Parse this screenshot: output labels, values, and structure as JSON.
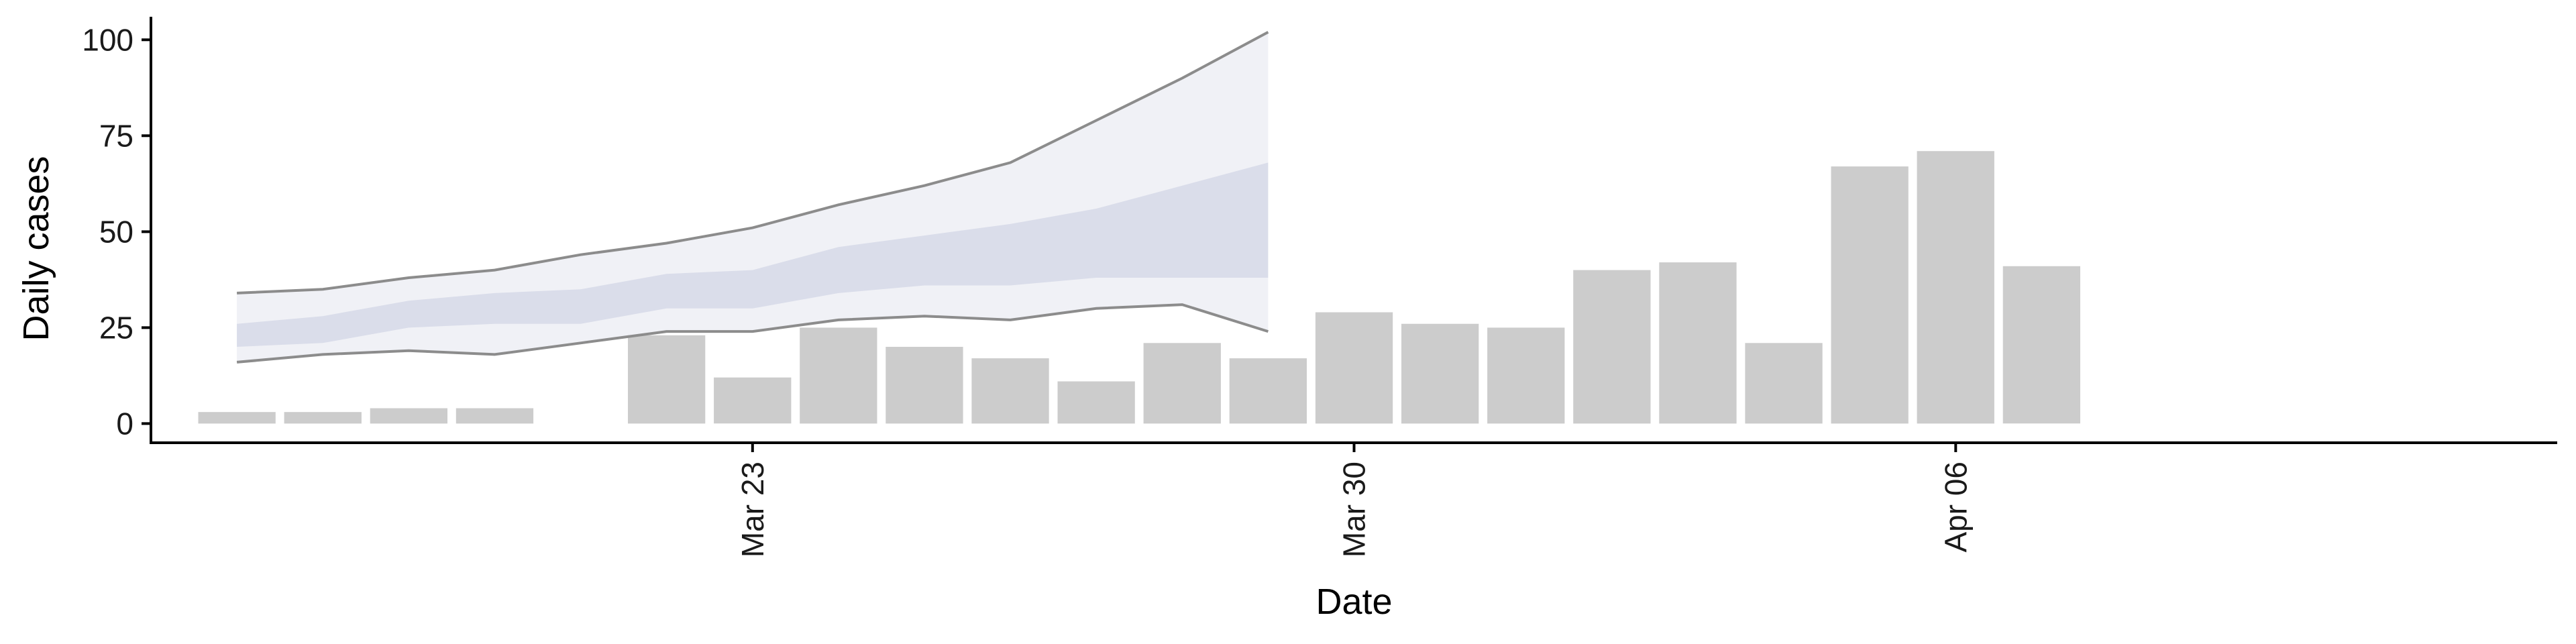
{
  "chart_data": {
    "type": "bar",
    "xlabel": "Date",
    "ylabel": "Daily cases",
    "ylim": [
      -5,
      106
    ],
    "y_ticks": [
      0,
      25,
      50,
      75,
      100
    ],
    "y_tick_labels": [
      "0",
      "25",
      "50",
      "75",
      "100"
    ],
    "x_ticks": [
      "2020-03-23",
      "2020-03-30",
      "2020-04-06"
    ],
    "x_tick_labels": [
      "Mar 23",
      "Mar 30",
      "Apr 06"
    ],
    "x_range": [
      "2020-03-16",
      "2020-04-13"
    ],
    "grid": false,
    "legend": "none",
    "bars": {
      "dates": [
        "2020-03-17",
        "2020-03-18",
        "2020-03-19",
        "2020-03-20",
        "2020-03-21",
        "2020-03-22",
        "2020-03-23",
        "2020-03-24",
        "2020-03-25",
        "2020-03-26",
        "2020-03-27",
        "2020-03-28",
        "2020-03-29",
        "2020-03-30",
        "2020-03-31",
        "2020-04-01",
        "2020-04-02",
        "2020-04-03",
        "2020-04-04",
        "2020-04-05",
        "2020-04-06",
        "2020-04-07",
        "2020-04-08",
        "2020-04-09"
      ],
      "values": [
        3,
        3,
        4,
        4,
        0,
        23,
        12,
        25,
        20,
        17,
        11,
        21,
        17,
        29,
        26,
        25,
        40,
        42,
        21,
        67,
        71,
        41,
        0,
        0
      ],
      "color": "#cccccc"
    },
    "estimate": {
      "dates": [
        "2020-03-17",
        "2020-03-18",
        "2020-03-19",
        "2020-03-20",
        "2020-03-21",
        "2020-03-22",
        "2020-03-23",
        "2020-03-24",
        "2020-03-25",
        "2020-03-26",
        "2020-03-27",
        "2020-03-28",
        "2020-03-29"
      ],
      "upper90": [
        34,
        35,
        38,
        40,
        44,
        47,
        51,
        57,
        62,
        68,
        79,
        90,
        102
      ],
      "upper50": [
        26,
        28,
        32,
        34,
        35,
        39,
        40,
        46,
        49,
        52,
        56,
        62,
        68
      ],
      "lower50": [
        20,
        21,
        25,
        26,
        26,
        30,
        30,
        34,
        36,
        36,
        38,
        38,
        38
      ],
      "lower90": [
        16,
        18,
        19,
        18,
        21,
        24,
        24,
        27,
        28,
        27,
        30,
        31,
        24
      ],
      "band_color": "#b3b8d4",
      "line_color": "#8c8c8c"
    }
  }
}
